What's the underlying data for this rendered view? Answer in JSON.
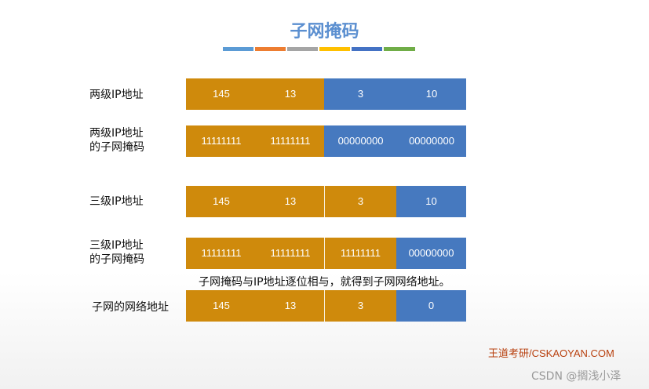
{
  "title": "子网掩码",
  "colors": {
    "title": "#5b8fd0",
    "network_part": "#cf8a0c",
    "host_part": "#4679bf",
    "stripes": [
      "#5b9bd5",
      "#ed7d31",
      "#a5a5a5",
      "#ffc000",
      "#4472c4",
      "#70ad47"
    ]
  },
  "rows": [
    {
      "label": "两级IP地址",
      "cells": [
        "145",
        "13",
        "3",
        "10"
      ]
    },
    {
      "label_line1": "两级IP地址",
      "label_line2": "的子网掩码",
      "cells": [
        "11111111",
        "11111111",
        "00000000",
        "00000000"
      ]
    },
    {
      "label": "三级IP地址",
      "cells": [
        "145",
        "13",
        "3",
        "10"
      ]
    },
    {
      "label_line1": "三级IP地址",
      "label_line2": "的子网掩码",
      "cells": [
        "11111111",
        "11111111",
        "11111111",
        "00000000"
      ]
    },
    {
      "label": "子网的网络地址",
      "cells": [
        "145",
        "13",
        "3",
        "0"
      ]
    }
  ],
  "note": "子网掩码与IP地址逐位相与，就得到子网网络地址。",
  "brand": "王道考研/CSKAOYAN.COM",
  "watermark": "CSDN @搁浅小泽"
}
